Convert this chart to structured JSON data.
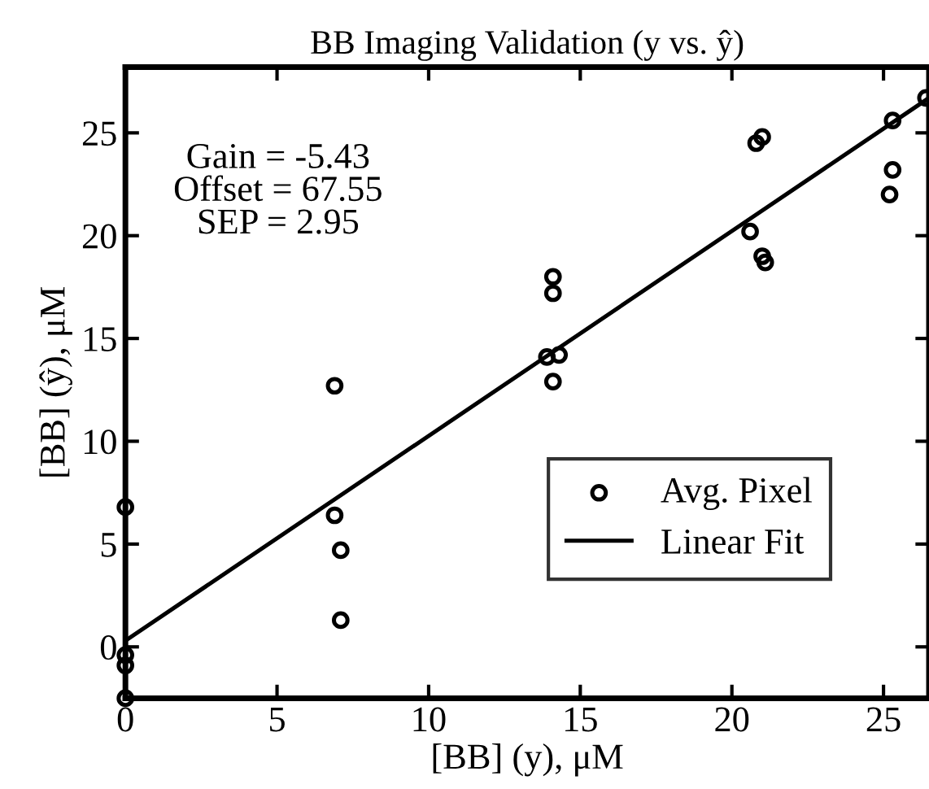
{
  "chart_data": {
    "type": "scatter",
    "title": "BB Imaging Validation (y vs. ŷ)",
    "xlabel": "[BB] (y), μM",
    "ylabel": "[BB] (ŷ), μM",
    "xlim": [
      0,
      26.5
    ],
    "ylim": [
      -2.5,
      28.2
    ],
    "xticks": [
      0,
      5,
      10,
      15,
      20,
      25
    ],
    "yticks": [
      0,
      5,
      10,
      15,
      20,
      25
    ],
    "grid": false,
    "legend": "bottom right",
    "marker": "circle",
    "annotations": [
      "Gain = -5.43\nOffset = 67.55\nSEP = 2.95"
    ],
    "series": [
      {
        "name": "Avg. Pixel",
        "color": "#000000",
        "x": [
          0,
          0,
          0,
          0,
          6.9,
          6.9,
          7.1,
          7.1,
          13.9,
          14.1,
          14.1,
          14.1,
          14.3,
          20.6,
          20.8,
          21.0,
          21.0,
          21.1,
          25.2,
          25.3,
          25.3,
          26.4
        ],
        "values": [
          6.8,
          -0.4,
          -0.9,
          -2.5,
          12.7,
          6.4,
          4.7,
          1.3,
          14.1,
          12.9,
          17.2,
          18.0,
          14.2,
          20.2,
          24.5,
          24.8,
          19.0,
          18.7,
          22.0,
          23.2,
          25.6,
          26.7
        ]
      },
      {
        "name": "Linear Fit",
        "type": "line",
        "color": "#000000",
        "line_style": "solid",
        "marker": "none",
        "x": [
          0,
          26.5
        ],
        "values": [
          0.3,
          26.7
        ]
      }
    ]
  }
}
